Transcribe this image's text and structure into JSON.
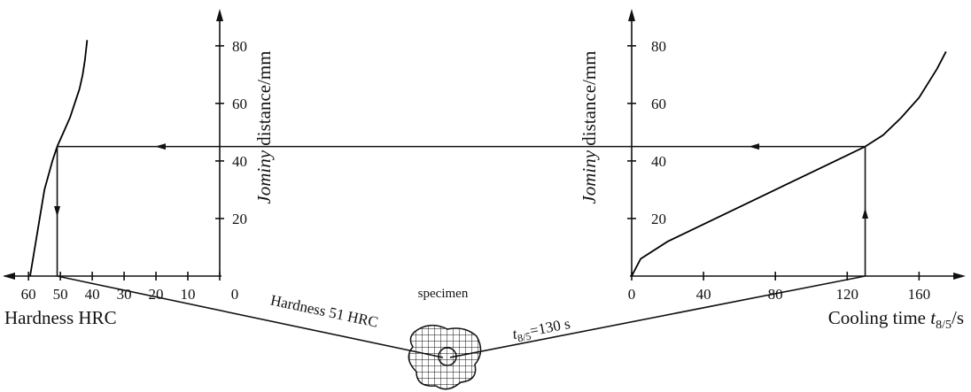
{
  "chart_data": [
    {
      "type": "line",
      "xlabel": "Hardness HRC",
      "ylabel": {
        "italic": "Jominy",
        "rest": " distance/mm"
      },
      "xlim": [
        67,
        0
      ],
      "ylim": [
        0,
        91
      ],
      "xticks": [
        60,
        50,
        40,
        30,
        20,
        10,
        0
      ],
      "yticks": [
        20,
        40,
        60,
        80
      ],
      "series": [
        {
          "color": "#000000",
          "x": [
            59.5,
            58,
            56.5,
            55,
            52.5,
            51,
            49,
            47,
            45.5,
            44,
            43,
            42.3,
            41.8,
            41.6
          ],
          "y": [
            0,
            10,
            20,
            30,
            40,
            45,
            50,
            55,
            60,
            65,
            70,
            75,
            80,
            82
          ]
        }
      ]
    },
    {
      "type": "line",
      "xlabel": {
        "text": "Cooling time ",
        "var": "t",
        "sub": "8/5",
        "unit": "/s"
      },
      "ylabel": {
        "italic": "Jominy",
        "rest": " distance/mm"
      },
      "xlim": [
        0,
        183
      ],
      "ylim": [
        0,
        91
      ],
      "xticks": [
        0,
        40,
        80,
        120,
        160
      ],
      "yticks": [
        20,
        40,
        60,
        80
      ],
      "series": [
        {
          "color": "#000000",
          "x": [
            0,
            5,
            20,
            40,
            60,
            80,
            100,
            120,
            130,
            140,
            150,
            160,
            170,
            175
          ],
          "y": [
            0,
            6,
            12,
            18,
            24,
            30,
            36,
            42,
            45,
            49,
            55,
            62,
            72,
            78
          ]
        }
      ]
    }
  ],
  "reading": {
    "distance": 45,
    "hardness": 51,
    "cooling_time": 130,
    "hardness_label": "Hardness 51 HRC",
    "cooling_label": {
      "var": "t",
      "sub": "8/5",
      "rest": "=130 s"
    }
  },
  "specimen": "specimen"
}
